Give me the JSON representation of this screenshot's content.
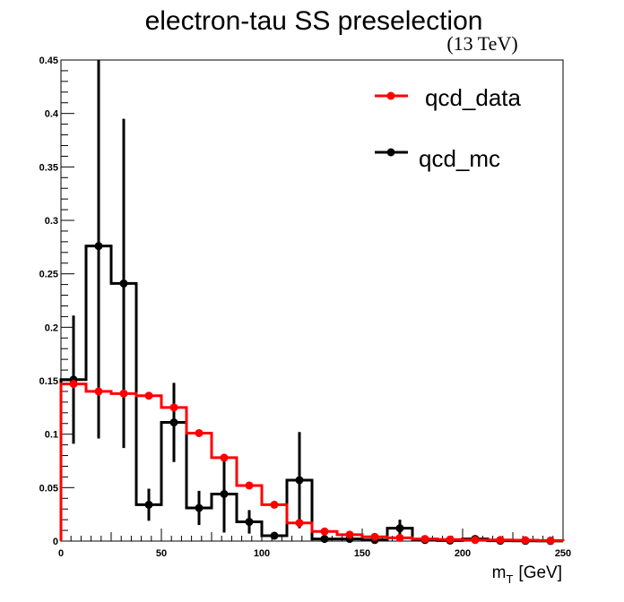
{
  "chart_data": {
    "type": "line",
    "title": "electron-tau SS preselection",
    "subtitle": "(13 TeV)",
    "xlabel_main": "m",
    "xlabel_sub": "T",
    "xlabel_unit": "[GeV]",
    "ylabel": "",
    "xlim": [
      0,
      250
    ],
    "ylim": [
      0,
      0.45
    ],
    "x_ticks": [
      0,
      50,
      100,
      150,
      200,
      250
    ],
    "y_ticks": [
      0,
      0.05,
      0.1,
      0.15,
      0.2,
      0.25,
      0.3,
      0.35,
      0.4,
      0.45
    ],
    "y_tick_labels": [
      "0",
      "0.05",
      "0.1",
      "0.15",
      "0.2",
      "0.25",
      "0.3",
      "0.35",
      "0.4",
      "0.45"
    ],
    "grid": false,
    "legend_position": "top-right",
    "bin_edges": [
      0,
      12.5,
      25,
      37.5,
      50,
      62.5,
      75,
      87.5,
      100,
      112.5,
      125,
      137.5,
      150,
      162.5,
      175,
      187.5,
      200,
      212.5,
      225,
      237.5,
      250
    ],
    "series": [
      {
        "name": "qcd_data",
        "color": "#ff0000",
        "values": [
          0.147,
          0.14,
          0.138,
          0.136,
          0.125,
          0.101,
          0.078,
          0.052,
          0.034,
          0.017,
          0.009,
          0.006,
          0.004,
          0.003,
          0.002,
          0.0015,
          0.001,
          0.001,
          0.0008,
          0.0005
        ],
        "errors": [
          0.004,
          0.003,
          0.003,
          0.003,
          0.003,
          0.003,
          0.003,
          0.002,
          0.002,
          0.002,
          0.001,
          0.001,
          0.001,
          0.001,
          0.001,
          0.0005,
          0.0005,
          0.0005,
          0.0005,
          0.0005
        ]
      },
      {
        "name": "qcd_mc",
        "color": "#000000",
        "values": [
          0.151,
          0.276,
          0.241,
          0.034,
          0.111,
          0.031,
          0.044,
          0.018,
          0.005,
          0.057,
          0.002,
          0.002,
          0.001,
          0.012,
          0.001,
          0.0005,
          0.002,
          0.0003,
          0.0002,
          0.0001
        ],
        "errors": [
          0.06,
          0.18,
          0.154,
          0.015,
          0.037,
          0.016,
          0.036,
          0.011,
          0.002,
          0.045,
          0.001,
          0.001,
          0.001,
          0.008,
          0.001,
          0.0005,
          0.002,
          0.0003,
          0.0002,
          0.0001
        ]
      }
    ]
  }
}
